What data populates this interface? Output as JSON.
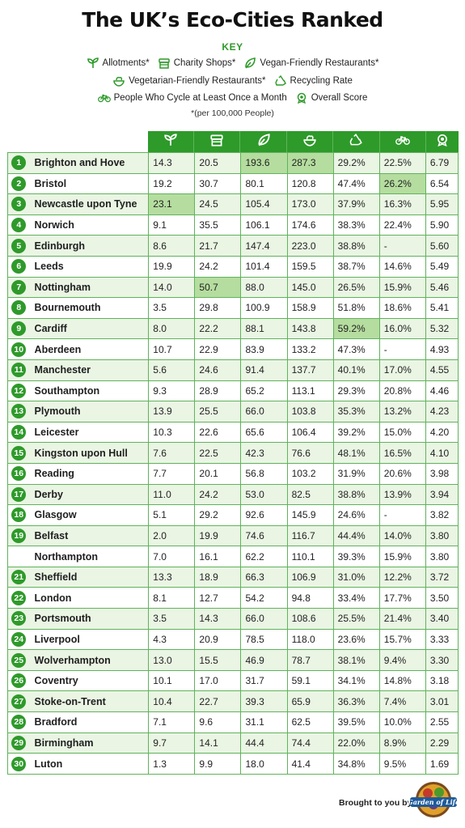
{
  "title": "The UK’s Eco-Cities Ranked",
  "key": {
    "heading": "KEY",
    "items": [
      {
        "icon": "sprout-icon",
        "label": "Allotments*"
      },
      {
        "icon": "shop-icon",
        "label": "Charity Shops*"
      },
      {
        "icon": "leaf-icon",
        "label": "Vegan-Friendly Restaurants*"
      },
      {
        "icon": "bowl-icon",
        "label": "Vegetarian-Friendly Restaurants*"
      },
      {
        "icon": "recycle-icon",
        "label": "Recycling Rate"
      },
      {
        "icon": "bicycle-icon",
        "label": "People Who Cycle at Least Once a Month"
      },
      {
        "icon": "award-icon",
        "label": "Overall Score"
      }
    ],
    "note": "*(per 100,000 People)"
  },
  "colors": {
    "accent": "#2e9a2a",
    "row_alt": "#eaf5e4",
    "highlight": "#b5dd9f"
  },
  "chart_data": {
    "type": "table",
    "columns": [
      "Allotments*",
      "Charity Shops*",
      "Vegan-Friendly Restaurants*",
      "Vegetarian-Friendly Restaurants*",
      "Recycling Rate",
      "People Who Cycle at Least Once a Month",
      "Overall Score"
    ],
    "rows": [
      {
        "rank": "1",
        "city": "Brighton and Hove",
        "values": [
          "14.3",
          "20.5",
          "193.6",
          "287.3",
          "29.2%",
          "22.5%",
          "6.79"
        ],
        "highlight": [
          2,
          3
        ]
      },
      {
        "rank": "2",
        "city": "Bristol",
        "values": [
          "19.2",
          "30.7",
          "80.1",
          "120.8",
          "47.4%",
          "26.2%",
          "6.54"
        ],
        "highlight": [
          5
        ]
      },
      {
        "rank": "3",
        "city": "Newcastle upon Tyne",
        "values": [
          "23.1",
          "24.5",
          "105.4",
          "173.0",
          "37.9%",
          "16.3%",
          "5.95"
        ],
        "highlight": [
          0
        ]
      },
      {
        "rank": "4",
        "city": "Norwich",
        "values": [
          "9.1",
          "35.5",
          "106.1",
          "174.6",
          "38.3%",
          "22.4%",
          "5.90"
        ],
        "highlight": []
      },
      {
        "rank": "5",
        "city": "Edinburgh",
        "values": [
          "8.6",
          "21.7",
          "147.4",
          "223.0",
          "38.8%",
          "-",
          "5.60"
        ],
        "highlight": []
      },
      {
        "rank": "6",
        "city": "Leeds",
        "values": [
          "19.9",
          "24.2",
          "101.4",
          "159.5",
          "38.7%",
          "14.6%",
          "5.49"
        ],
        "highlight": []
      },
      {
        "rank": "7",
        "city": "Nottingham",
        "values": [
          "14.0",
          "50.7",
          "88.0",
          "145.0",
          "26.5%",
          "15.9%",
          "5.46"
        ],
        "highlight": [
          1
        ]
      },
      {
        "rank": "8",
        "city": "Bournemouth",
        "values": [
          "3.5",
          "29.8",
          "100.9",
          "158.9",
          "51.8%",
          "18.6%",
          "5.41"
        ],
        "highlight": []
      },
      {
        "rank": "9",
        "city": "Cardiff",
        "values": [
          "8.0",
          "22.2",
          "88.1",
          "143.8",
          "59.2%",
          "16.0%",
          "5.32"
        ],
        "highlight": [
          4
        ]
      },
      {
        "rank": "10",
        "city": "Aberdeen",
        "values": [
          "10.7",
          "22.9",
          "83.9",
          "133.2",
          "47.3%",
          "-",
          "4.93"
        ],
        "highlight": []
      },
      {
        "rank": "11",
        "city": "Manchester",
        "values": [
          "5.6",
          "24.6",
          "91.4",
          "137.7",
          "40.1%",
          "17.0%",
          "4.55"
        ],
        "highlight": []
      },
      {
        "rank": "12",
        "city": "Southampton",
        "values": [
          "9.3",
          "28.9",
          "65.2",
          "113.1",
          "29.3%",
          "20.8%",
          "4.46"
        ],
        "highlight": []
      },
      {
        "rank": "13",
        "city": "Plymouth",
        "values": [
          "13.9",
          "25.5",
          "66.0",
          "103.8",
          "35.3%",
          "13.2%",
          "4.23"
        ],
        "highlight": []
      },
      {
        "rank": "14",
        "city": "Leicester",
        "values": [
          "10.3",
          "22.6",
          "65.6",
          "106.4",
          "39.2%",
          "15.0%",
          "4.20"
        ],
        "highlight": []
      },
      {
        "rank": "15",
        "city": "Kingston upon Hull",
        "values": [
          "7.6",
          "22.5",
          "42.3",
          "76.6",
          "48.1%",
          "16.5%",
          "4.10"
        ],
        "highlight": []
      },
      {
        "rank": "16",
        "city": "Reading",
        "values": [
          "7.7",
          "20.1",
          "56.8",
          "103.2",
          "31.9%",
          "20.6%",
          "3.98"
        ],
        "highlight": []
      },
      {
        "rank": "17",
        "city": "Derby",
        "values": [
          "11.0",
          "24.2",
          "53.0",
          "82.5",
          "38.8%",
          "13.9%",
          "3.94"
        ],
        "highlight": []
      },
      {
        "rank": "18",
        "city": "Glasgow",
        "values": [
          "5.1",
          "29.2",
          "92.6",
          "145.9",
          "24.6%",
          "-",
          "3.82"
        ],
        "highlight": []
      },
      {
        "rank": "19",
        "city": "Belfast",
        "values": [
          "2.0",
          "19.9",
          "74.6",
          "116.7",
          "44.4%",
          "14.0%",
          "3.80"
        ],
        "highlight": []
      },
      {
        "rank": "",
        "city": "Northampton",
        "values": [
          "7.0",
          "16.1",
          "62.2",
          "110.1",
          "39.3%",
          "15.9%",
          "3.80"
        ],
        "highlight": []
      },
      {
        "rank": "21",
        "city": "Sheffield",
        "values": [
          "13.3",
          "18.9",
          "66.3",
          "106.9",
          "31.0%",
          "12.2%",
          "3.72"
        ],
        "highlight": []
      },
      {
        "rank": "22",
        "city": "London",
        "values": [
          "8.1",
          "12.7",
          "54.2",
          "94.8",
          "33.4%",
          "17.7%",
          "3.50"
        ],
        "highlight": []
      },
      {
        "rank": "23",
        "city": "Portsmouth",
        "values": [
          "3.5",
          "14.3",
          "66.0",
          "108.6",
          "25.5%",
          "21.4%",
          "3.40"
        ],
        "highlight": []
      },
      {
        "rank": "24",
        "city": "Liverpool",
        "values": [
          "4.3",
          "20.9",
          "78.5",
          "118.0",
          "23.6%",
          "15.7%",
          "3.33"
        ],
        "highlight": []
      },
      {
        "rank": "25",
        "city": "Wolverhampton",
        "values": [
          "13.0",
          "15.5",
          "46.9",
          "78.7",
          "38.1%",
          "9.4%",
          "3.30"
        ],
        "highlight": []
      },
      {
        "rank": "26",
        "city": "Coventry",
        "values": [
          "10.1",
          "17.0",
          "31.7",
          "59.1",
          "34.1%",
          "14.8%",
          "3.18"
        ],
        "highlight": []
      },
      {
        "rank": "27",
        "city": "Stoke-on-Trent",
        "values": [
          "10.4",
          "22.7",
          "39.3",
          "65.9",
          "36.3%",
          "7.4%",
          "3.01"
        ],
        "highlight": []
      },
      {
        "rank": "28",
        "city": "Bradford",
        "values": [
          "7.1",
          "9.6",
          "31.1",
          "62.5",
          "39.5%",
          "10.0%",
          "2.55"
        ],
        "highlight": []
      },
      {
        "rank": "29",
        "city": "Birmingham",
        "values": [
          "9.7",
          "14.1",
          "44.4",
          "74.4",
          "22.0%",
          "8.9%",
          "2.29"
        ],
        "highlight": []
      },
      {
        "rank": "30",
        "city": "Luton",
        "values": [
          "1.3",
          "9.9",
          "18.0",
          "41.4",
          "34.8%",
          "9.5%",
          "1.69"
        ],
        "highlight": []
      }
    ]
  },
  "footer": {
    "brought_by": "Brought to you by",
    "logo_text": "Garden of Life"
  }
}
